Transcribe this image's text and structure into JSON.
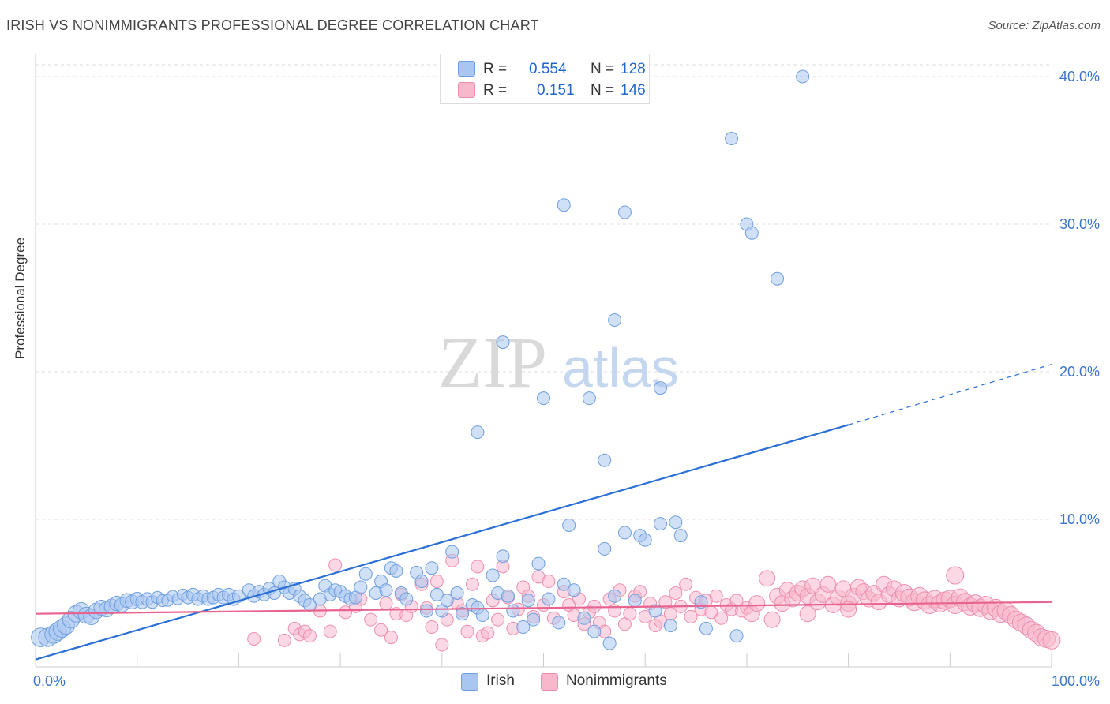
{
  "header": {
    "title": "IRISH VS NONIMMIGRANTS PROFESSIONAL DEGREE CORRELATION CHART",
    "source": "Source: ZipAtlas.com"
  },
  "watermark": {
    "zip": "ZIP",
    "atlas": "atlas"
  },
  "legend": {
    "rows": [
      {
        "r_label": "R =",
        "r_value": "0.554",
        "n_label": "N =",
        "n_value": "128"
      },
      {
        "r_label": "R =",
        "r_value": "0.151",
        "n_label": "N =",
        "n_value": "146"
      }
    ]
  },
  "colors": {
    "irish_fill": "#a9c6f0",
    "irish_stroke": "#6f9fe0",
    "irish_line": "#2a6fd6",
    "nonimm_fill": "#f7b8cc",
    "nonimm_stroke": "#ec8fae",
    "nonimm_line": "#e8648e",
    "axis_text": "#3b74c9",
    "grid": "#dddddd"
  },
  "chart_data": {
    "type": "scatter",
    "title": "IRISH VS NONIMMIGRANTS PROFESSIONAL DEGREE CORRELATION CHART",
    "xlabel": "",
    "ylabel": "Professional Degree",
    "xlim": [
      0,
      100
    ],
    "ylim": [
      0,
      42
    ],
    "x_tick_labels": [
      "0.0%",
      "100.0%"
    ],
    "y_ticks": [
      10,
      20,
      30,
      40
    ],
    "y_tick_labels": [
      "10.0%",
      "20.0%",
      "30.0%",
      "40.0%"
    ],
    "grid": true,
    "legend_position": "bottom-center",
    "series": [
      {
        "name": "Irish",
        "r": 0.554,
        "n": 128,
        "trend": {
          "x0": 0,
          "y0": 0.5,
          "x1": 80,
          "y1": 16.4,
          "dashed_to_x": 100,
          "dashed_to_y": 20.5
        },
        "points": [
          [
            0.5,
            2.0
          ],
          [
            1.2,
            2.0
          ],
          [
            1.8,
            2.2
          ],
          [
            2.2,
            2.4
          ],
          [
            2.6,
            2.6
          ],
          [
            3.0,
            2.8
          ],
          [
            3.5,
            3.2
          ],
          [
            4.0,
            3.6
          ],
          [
            4.5,
            3.8
          ],
          [
            5.0,
            3.5
          ],
          [
            5.5,
            3.4
          ],
          [
            6.0,
            3.8
          ],
          [
            6.5,
            4.0
          ],
          [
            7.0,
            3.9
          ],
          [
            7.5,
            4.1
          ],
          [
            8.0,
            4.3
          ],
          [
            8.5,
            4.2
          ],
          [
            9.0,
            4.5
          ],
          [
            9.5,
            4.4
          ],
          [
            10.0,
            4.6
          ],
          [
            10.5,
            4.4
          ],
          [
            11.0,
            4.6
          ],
          [
            11.5,
            4.4
          ],
          [
            12.0,
            4.7
          ],
          [
            12.5,
            4.5
          ],
          [
            13.0,
            4.5
          ],
          [
            13.5,
            4.8
          ],
          [
            14.0,
            4.6
          ],
          [
            14.5,
            4.9
          ],
          [
            15.0,
            4.7
          ],
          [
            15.5,
            4.9
          ],
          [
            16.0,
            4.6
          ],
          [
            16.5,
            4.8
          ],
          [
            17.0,
            4.6
          ],
          [
            17.5,
            4.7
          ],
          [
            18.0,
            4.9
          ],
          [
            18.5,
            4.7
          ],
          [
            19.0,
            4.9
          ],
          [
            19.5,
            4.6
          ],
          [
            20.0,
            4.8
          ],
          [
            21.0,
            5.2
          ],
          [
            21.5,
            4.8
          ],
          [
            22.0,
            5.1
          ],
          [
            22.5,
            4.9
          ],
          [
            23.0,
            5.3
          ],
          [
            23.5,
            5.0
          ],
          [
            24.0,
            5.8
          ],
          [
            24.5,
            5.4
          ],
          [
            25.0,
            5.0
          ],
          [
            25.5,
            5.3
          ],
          [
            26.0,
            4.8
          ],
          [
            26.5,
            4.5
          ],
          [
            27.0,
            4.2
          ],
          [
            28.0,
            4.6
          ],
          [
            28.5,
            5.5
          ],
          [
            29.0,
            4.9
          ],
          [
            29.5,
            5.2
          ],
          [
            30.0,
            5.1
          ],
          [
            30.5,
            4.8
          ],
          [
            31.0,
            4.6
          ],
          [
            31.5,
            4.7
          ],
          [
            32.0,
            5.4
          ],
          [
            32.5,
            6.3
          ],
          [
            33.5,
            5.0
          ],
          [
            34.0,
            5.8
          ],
          [
            34.5,
            5.2
          ],
          [
            35.0,
            6.7
          ],
          [
            35.5,
            6.5
          ],
          [
            36.0,
            5.0
          ],
          [
            36.5,
            4.6
          ],
          [
            37.5,
            6.4
          ],
          [
            38.0,
            5.8
          ],
          [
            38.5,
            3.8
          ],
          [
            39.0,
            6.7
          ],
          [
            39.5,
            4.9
          ],
          [
            40.0,
            3.8
          ],
          [
            40.5,
            4.5
          ],
          [
            41.0,
            7.8
          ],
          [
            41.5,
            5.0
          ],
          [
            42.0,
            3.6
          ],
          [
            43.0,
            4.2
          ],
          [
            43.5,
            4.0
          ],
          [
            44.0,
            3.5
          ],
          [
            45.0,
            6.2
          ],
          [
            45.5,
            5.0
          ],
          [
            46.0,
            7.5
          ],
          [
            46.5,
            4.8
          ],
          [
            47.0,
            3.8
          ],
          [
            48.0,
            2.7
          ],
          [
            48.5,
            4.5
          ],
          [
            49.0,
            3.2
          ],
          [
            49.5,
            7.0
          ],
          [
            50.5,
            4.6
          ],
          [
            51.5,
            3.0
          ],
          [
            52.0,
            5.6
          ],
          [
            52.5,
            9.6
          ],
          [
            53.0,
            5.2
          ],
          [
            54.0,
            3.3
          ],
          [
            55.0,
            2.4
          ],
          [
            56.0,
            8.0
          ],
          [
            56.5,
            1.6
          ],
          [
            57.0,
            4.8
          ],
          [
            58.0,
            9.1
          ],
          [
            59.0,
            4.5
          ],
          [
            59.5,
            8.9
          ],
          [
            60.0,
            8.6
          ],
          [
            61.0,
            3.8
          ],
          [
            61.5,
            9.7
          ],
          [
            62.5,
            2.8
          ],
          [
            63.0,
            9.8
          ],
          [
            63.5,
            8.9
          ],
          [
            65.5,
            4.4
          ],
          [
            66.0,
            2.6
          ],
          [
            69.0,
            2.1
          ],
          [
            43.5,
            15.9
          ],
          [
            46.0,
            22.0
          ],
          [
            50.0,
            18.2
          ],
          [
            52.0,
            31.3
          ],
          [
            54.5,
            18.2
          ],
          [
            56.0,
            14.0
          ],
          [
            57.0,
            23.5
          ],
          [
            58.0,
            30.8
          ],
          [
            61.5,
            18.9
          ],
          [
            68.5,
            35.8
          ],
          [
            70.0,
            30.0
          ],
          [
            70.5,
            29.4
          ],
          [
            73.0,
            26.3
          ],
          [
            75.5,
            40.0
          ]
        ]
      },
      {
        "name": "Nonimmigrants",
        "r": 0.151,
        "n": 146,
        "trend": {
          "x0": 0,
          "y0": 3.6,
          "x1": 100,
          "y1": 4.4
        },
        "points": [
          [
            21.5,
            1.9
          ],
          [
            24.5,
            1.8
          ],
          [
            25.5,
            2.6
          ],
          [
            26.0,
            2.2
          ],
          [
            26.5,
            2.4
          ],
          [
            27.0,
            2.1
          ],
          [
            28.0,
            3.8
          ],
          [
            29.0,
            2.4
          ],
          [
            29.5,
            6.9
          ],
          [
            30.5,
            3.7
          ],
          [
            31.5,
            4.1
          ],
          [
            32.0,
            4.6
          ],
          [
            33.0,
            3.2
          ],
          [
            34.0,
            2.5
          ],
          [
            34.5,
            4.3
          ],
          [
            35.0,
            2.0
          ],
          [
            35.5,
            3.6
          ],
          [
            36.0,
            4.9
          ],
          [
            36.5,
            3.5
          ],
          [
            37.0,
            4.1
          ],
          [
            38.0,
            5.6
          ],
          [
            38.5,
            4.0
          ],
          [
            39.0,
            2.7
          ],
          [
            39.5,
            5.8
          ],
          [
            40.0,
            1.5
          ],
          [
            40.5,
            3.2
          ],
          [
            41.0,
            7.2
          ],
          [
            41.5,
            4.3
          ],
          [
            42.0,
            3.8
          ],
          [
            42.5,
            2.4
          ],
          [
            43.0,
            5.6
          ],
          [
            43.5,
            6.8
          ],
          [
            44.0,
            2.1
          ],
          [
            44.5,
            2.3
          ],
          [
            45.0,
            4.5
          ],
          [
            45.5,
            3.2
          ],
          [
            46.0,
            6.8
          ],
          [
            46.5,
            4.7
          ],
          [
            47.0,
            2.6
          ],
          [
            47.5,
            3.9
          ],
          [
            48.0,
            5.4
          ],
          [
            48.5,
            4.8
          ],
          [
            49.0,
            3.4
          ],
          [
            49.5,
            6.1
          ],
          [
            50.0,
            4.2
          ],
          [
            50.5,
            5.8
          ],
          [
            51.0,
            3.3
          ],
          [
            52.0,
            5.1
          ],
          [
            52.5,
            4.2
          ],
          [
            53.0,
            3.5
          ],
          [
            53.5,
            4.6
          ],
          [
            54.0,
            2.9
          ],
          [
            54.5,
            3.7
          ],
          [
            55.0,
            4.1
          ],
          [
            55.5,
            3.0
          ],
          [
            56.0,
            2.4
          ],
          [
            56.5,
            4.6
          ],
          [
            57.0,
            3.8
          ],
          [
            57.5,
            5.2
          ],
          [
            58.0,
            2.9
          ],
          [
            58.5,
            3.6
          ],
          [
            59.0,
            4.8
          ],
          [
            59.5,
            5.1
          ],
          [
            60.0,
            3.4
          ],
          [
            60.5,
            4.3
          ],
          [
            61.0,
            2.8
          ],
          [
            61.5,
            3.1
          ],
          [
            62.0,
            4.4
          ],
          [
            62.5,
            3.6
          ],
          [
            63.0,
            5.0
          ],
          [
            63.5,
            4.1
          ],
          [
            64.0,
            5.6
          ],
          [
            64.5,
            3.4
          ],
          [
            65.0,
            4.7
          ],
          [
            65.5,
            3.9
          ],
          [
            66.0,
            4.5
          ],
          [
            66.5,
            3.7
          ],
          [
            67.0,
            4.8
          ],
          [
            67.5,
            3.3
          ],
          [
            68.0,
            4.2
          ],
          [
            68.5,
            3.9
          ],
          [
            69.0,
            4.5
          ],
          [
            69.5,
            3.8
          ],
          [
            70.0,
            4.0
          ],
          [
            70.5,
            3.6
          ],
          [
            71.0,
            4.3
          ],
          [
            72.0,
            6.0
          ],
          [
            72.5,
            3.2
          ],
          [
            73.0,
            4.8
          ],
          [
            73.5,
            4.3
          ],
          [
            74.0,
            5.2
          ],
          [
            74.5,
            4.6
          ],
          [
            75.0,
            5.0
          ],
          [
            75.5,
            5.3
          ],
          [
            76.0,
            4.8
          ],
          [
            76.5,
            5.5
          ],
          [
            77.0,
            4.4
          ],
          [
            77.5,
            4.9
          ],
          [
            78.0,
            5.6
          ],
          [
            78.5,
            4.2
          ],
          [
            79.0,
            4.7
          ],
          [
            79.5,
            5.3
          ],
          [
            80.0,
            4.3
          ],
          [
            80.5,
            4.8
          ],
          [
            81.0,
            5.4
          ],
          [
            81.5,
            5.1
          ],
          [
            82.0,
            4.6
          ],
          [
            82.5,
            5.0
          ],
          [
            83.0,
            4.4
          ],
          [
            83.5,
            5.6
          ],
          [
            84.0,
            4.9
          ],
          [
            84.5,
            5.3
          ],
          [
            85.0,
            4.6
          ],
          [
            85.5,
            5.0
          ],
          [
            86.0,
            4.7
          ],
          [
            86.5,
            4.4
          ],
          [
            87.0,
            4.8
          ],
          [
            87.5,
            4.5
          ],
          [
            88.0,
            4.2
          ],
          [
            88.5,
            4.6
          ],
          [
            89.0,
            4.3
          ],
          [
            89.5,
            4.5
          ],
          [
            90.0,
            4.6
          ],
          [
            90.5,
            4.2
          ],
          [
            91.0,
            4.7
          ],
          [
            91.5,
            4.4
          ],
          [
            92.0,
            4.1
          ],
          [
            92.5,
            4.3
          ],
          [
            93.0,
            4.0
          ],
          [
            93.5,
            4.2
          ],
          [
            94.0,
            3.8
          ],
          [
            94.5,
            4.0
          ],
          [
            95.0,
            3.6
          ],
          [
            95.5,
            3.8
          ],
          [
            96.0,
            3.5
          ],
          [
            96.5,
            3.2
          ],
          [
            97.0,
            3.0
          ],
          [
            97.5,
            2.8
          ],
          [
            98.0,
            2.5
          ],
          [
            98.5,
            2.3
          ],
          [
            99.0,
            2.0
          ],
          [
            99.5,
            1.9
          ],
          [
            100.0,
            1.8
          ],
          [
            76.0,
            3.6
          ],
          [
            80.0,
            3.9
          ],
          [
            90.5,
            6.2
          ]
        ]
      }
    ]
  },
  "bottom_legend": [
    "Irish",
    "Nonimmigrants"
  ]
}
